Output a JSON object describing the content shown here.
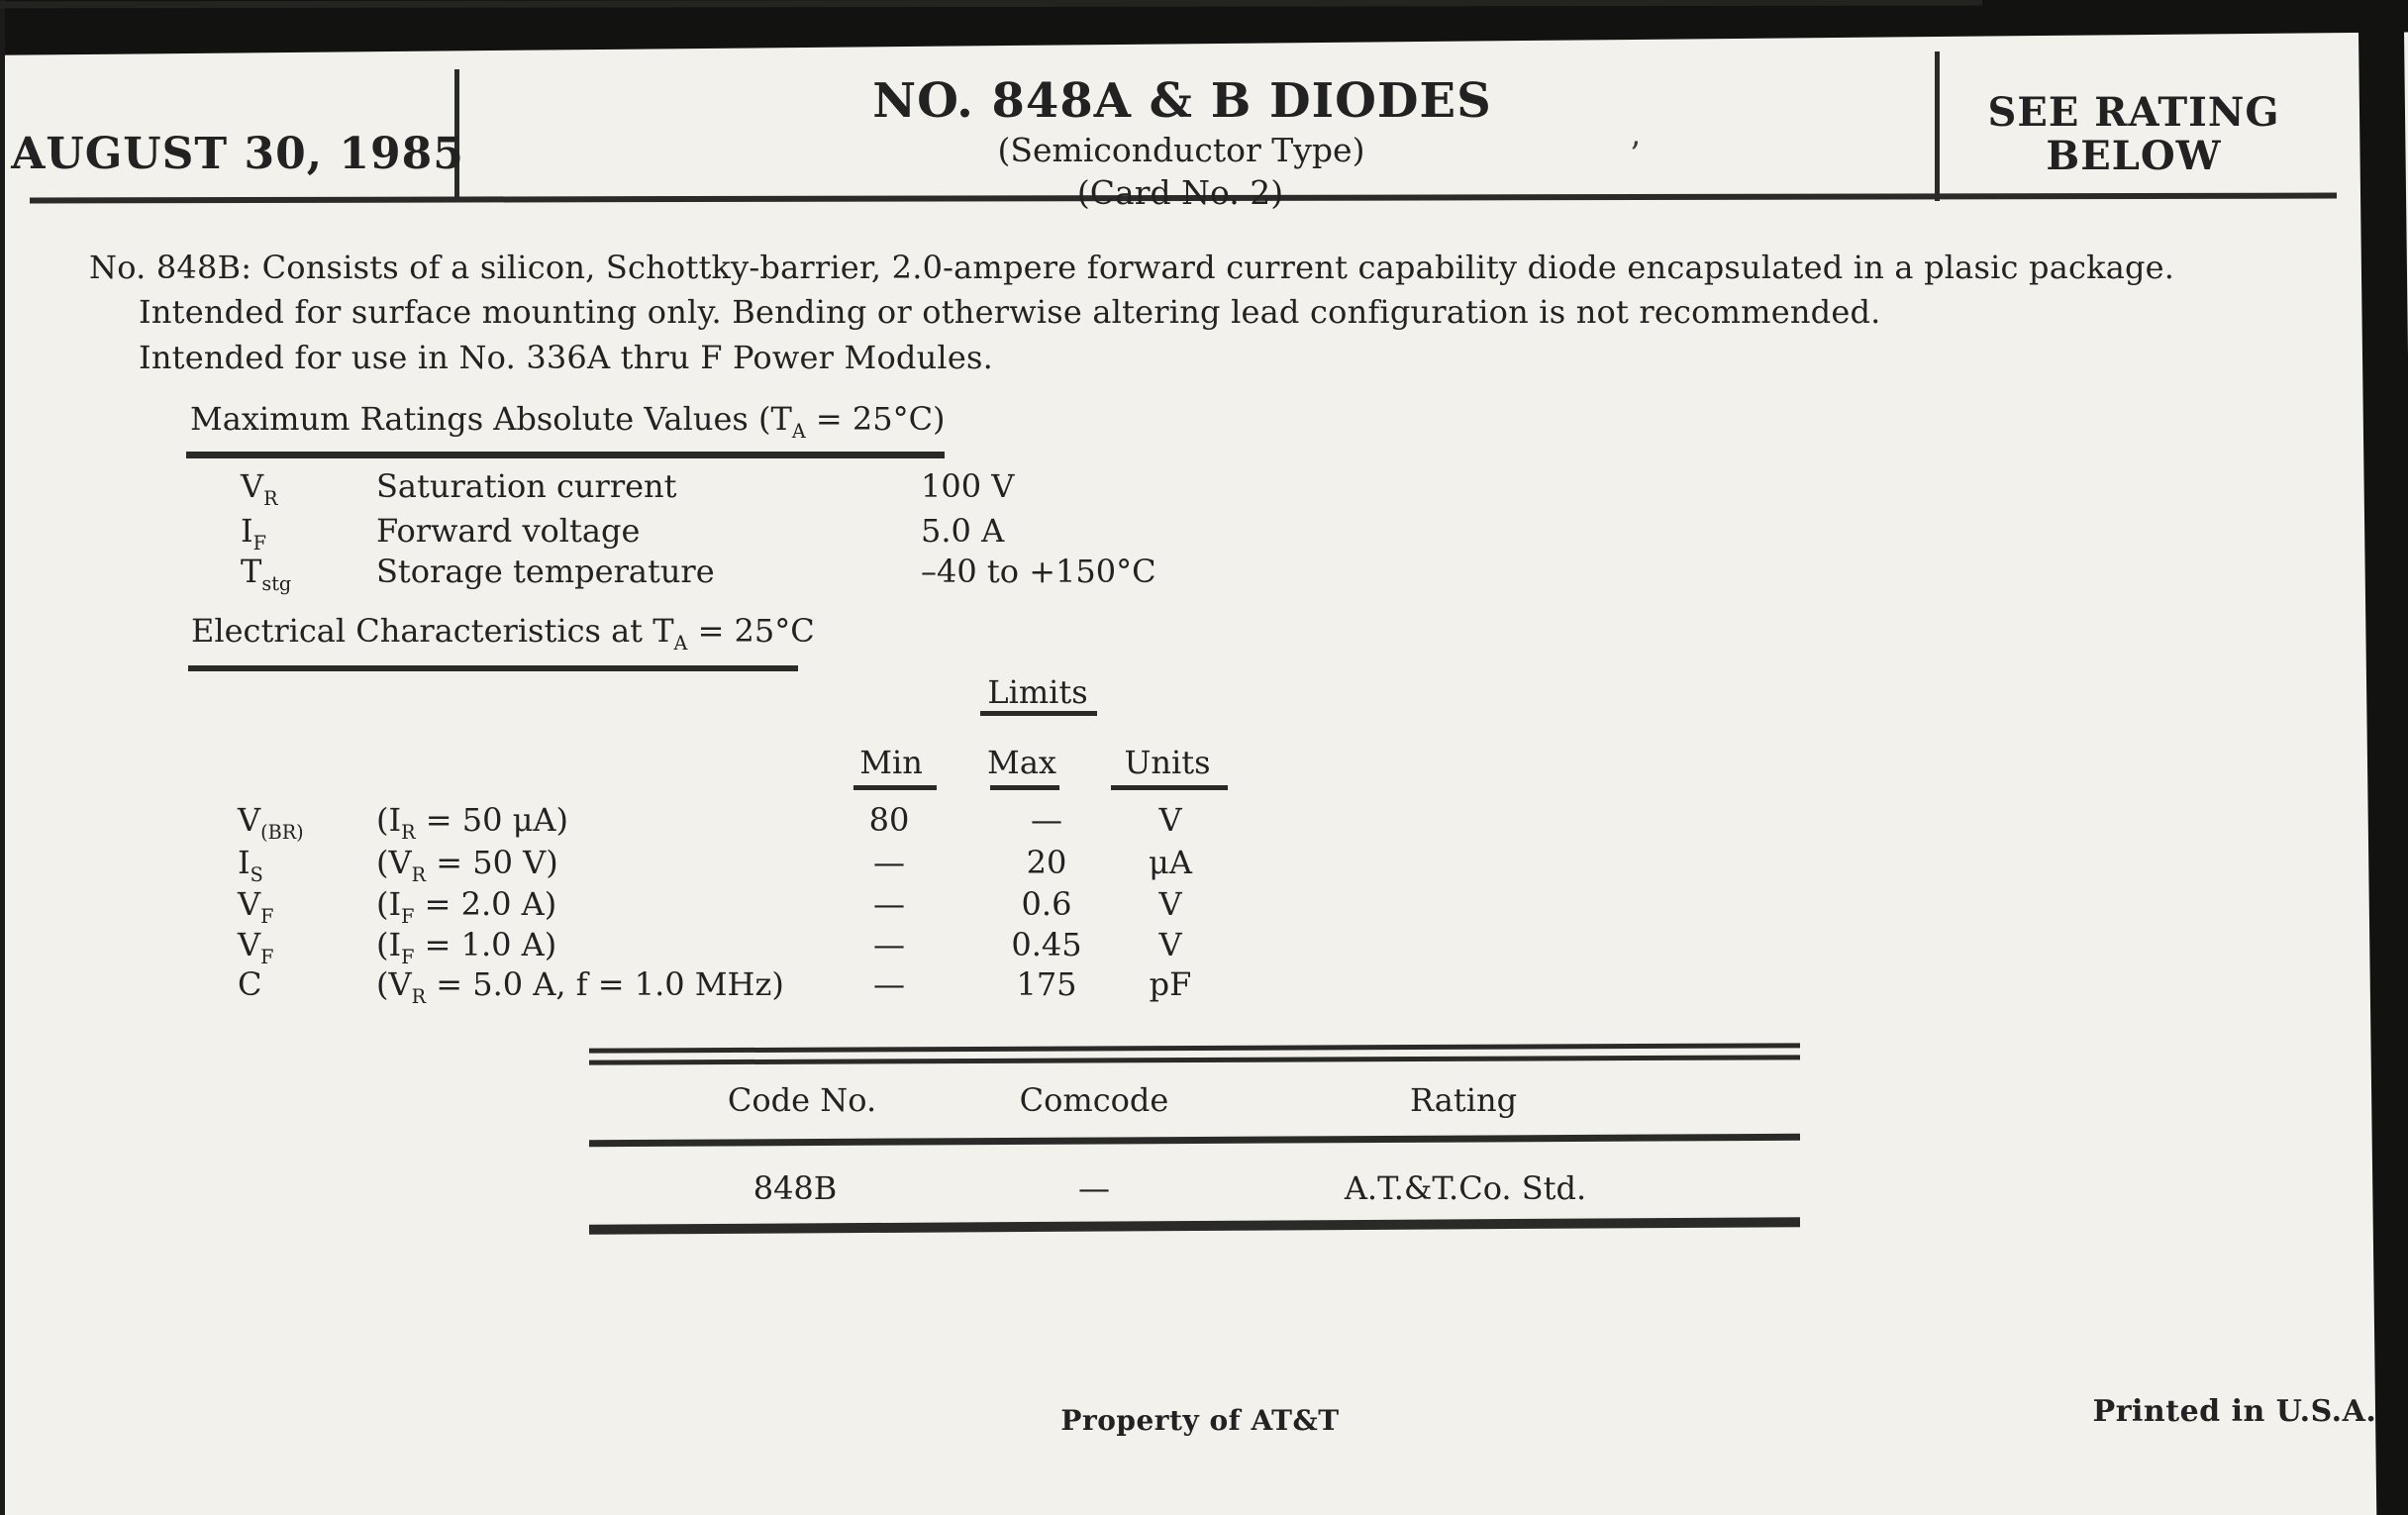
{
  "colors": {
    "paper": "#f2f1ec",
    "ink": "#222222",
    "border_bar": "#121211"
  },
  "header": {
    "date": "AUGUST 30, 1985",
    "title": "NO. 848A & B DIODES",
    "subtitle_type": "(Semiconductor Type)",
    "subtitle_card": "(Card No. 2)",
    "rating_note_line1": "SEE RATING",
    "rating_note_line2": "BELOW",
    "stray_mark": "’"
  },
  "description_lines": [
    "No. 848B: Consists of a silicon, Schottky-barrier, 2.0-ampere forward current capability diode encapsulated in a plasic package.",
    "Intended for surface mounting only. Bending or otherwise altering lead configuration is not recommended.",
    "Intended for use in No. 336A thru F Power Modules."
  ],
  "maximum_ratings": {
    "heading": {
      "pre": "Maximum Ratings Absolute Values (T",
      "sub": "A",
      "post": " = 25°C)"
    },
    "rows": [
      {
        "symbol": "V",
        "symbol_sub": "R",
        "parameter": "Saturation current",
        "value": "100 V"
      },
      {
        "symbol": "I",
        "symbol_sub": "F",
        "parameter": "Forward voltage",
        "value": "5.0 A"
      },
      {
        "symbol": "T",
        "symbol_sub": "stg",
        "parameter": "Storage temperature",
        "value": "–40 to +150°C"
      }
    ]
  },
  "electrical_characteristics": {
    "heading": {
      "pre": "Electrical Characteristics at T",
      "sub": "A",
      "post": " = 25°C"
    },
    "limits_label": "Limits",
    "columns": {
      "min": "Min",
      "max": "Max",
      "units": "Units"
    },
    "rows": [
      {
        "symbol": "V",
        "symbol_sub": "(BR)",
        "cond_pre": "(I",
        "cond_sub": "R",
        "cond_post": " = 50 μA)",
        "min": "80",
        "max": "—",
        "units": "V"
      },
      {
        "symbol": "I",
        "symbol_sub": "S",
        "cond_pre": "(V",
        "cond_sub": "R",
        "cond_post": " = 50 V)",
        "min": "—",
        "max": "20",
        "units": "μA"
      },
      {
        "symbol": "V",
        "symbol_sub": "F",
        "cond_pre": "(I",
        "cond_sub": "F",
        "cond_post": " = 2.0 A)",
        "min": "—",
        "max": "0.6",
        "units": "V"
      },
      {
        "symbol": "V",
        "symbol_sub": "F",
        "cond_pre": "(I",
        "cond_sub": "F",
        "cond_post": " = 1.0 A)",
        "min": "—",
        "max": "0.45",
        "units": "V"
      },
      {
        "symbol": "C",
        "symbol_sub": "",
        "cond_pre": "(V",
        "cond_sub": "R",
        "cond_post": " = 5.0 A, f = 1.0 MHz)",
        "min": "—",
        "max": "175",
        "units": "pF"
      }
    ]
  },
  "code_table": {
    "headers": {
      "code_no": "Code No.",
      "comcode": "Comcode",
      "rating": "Rating"
    },
    "row": {
      "code_no": "848B",
      "comcode": "—",
      "rating": "A.T.&T.Co. Std."
    }
  },
  "footer": {
    "property": "Property of AT&T",
    "printed": "Printed in U.S.A."
  }
}
